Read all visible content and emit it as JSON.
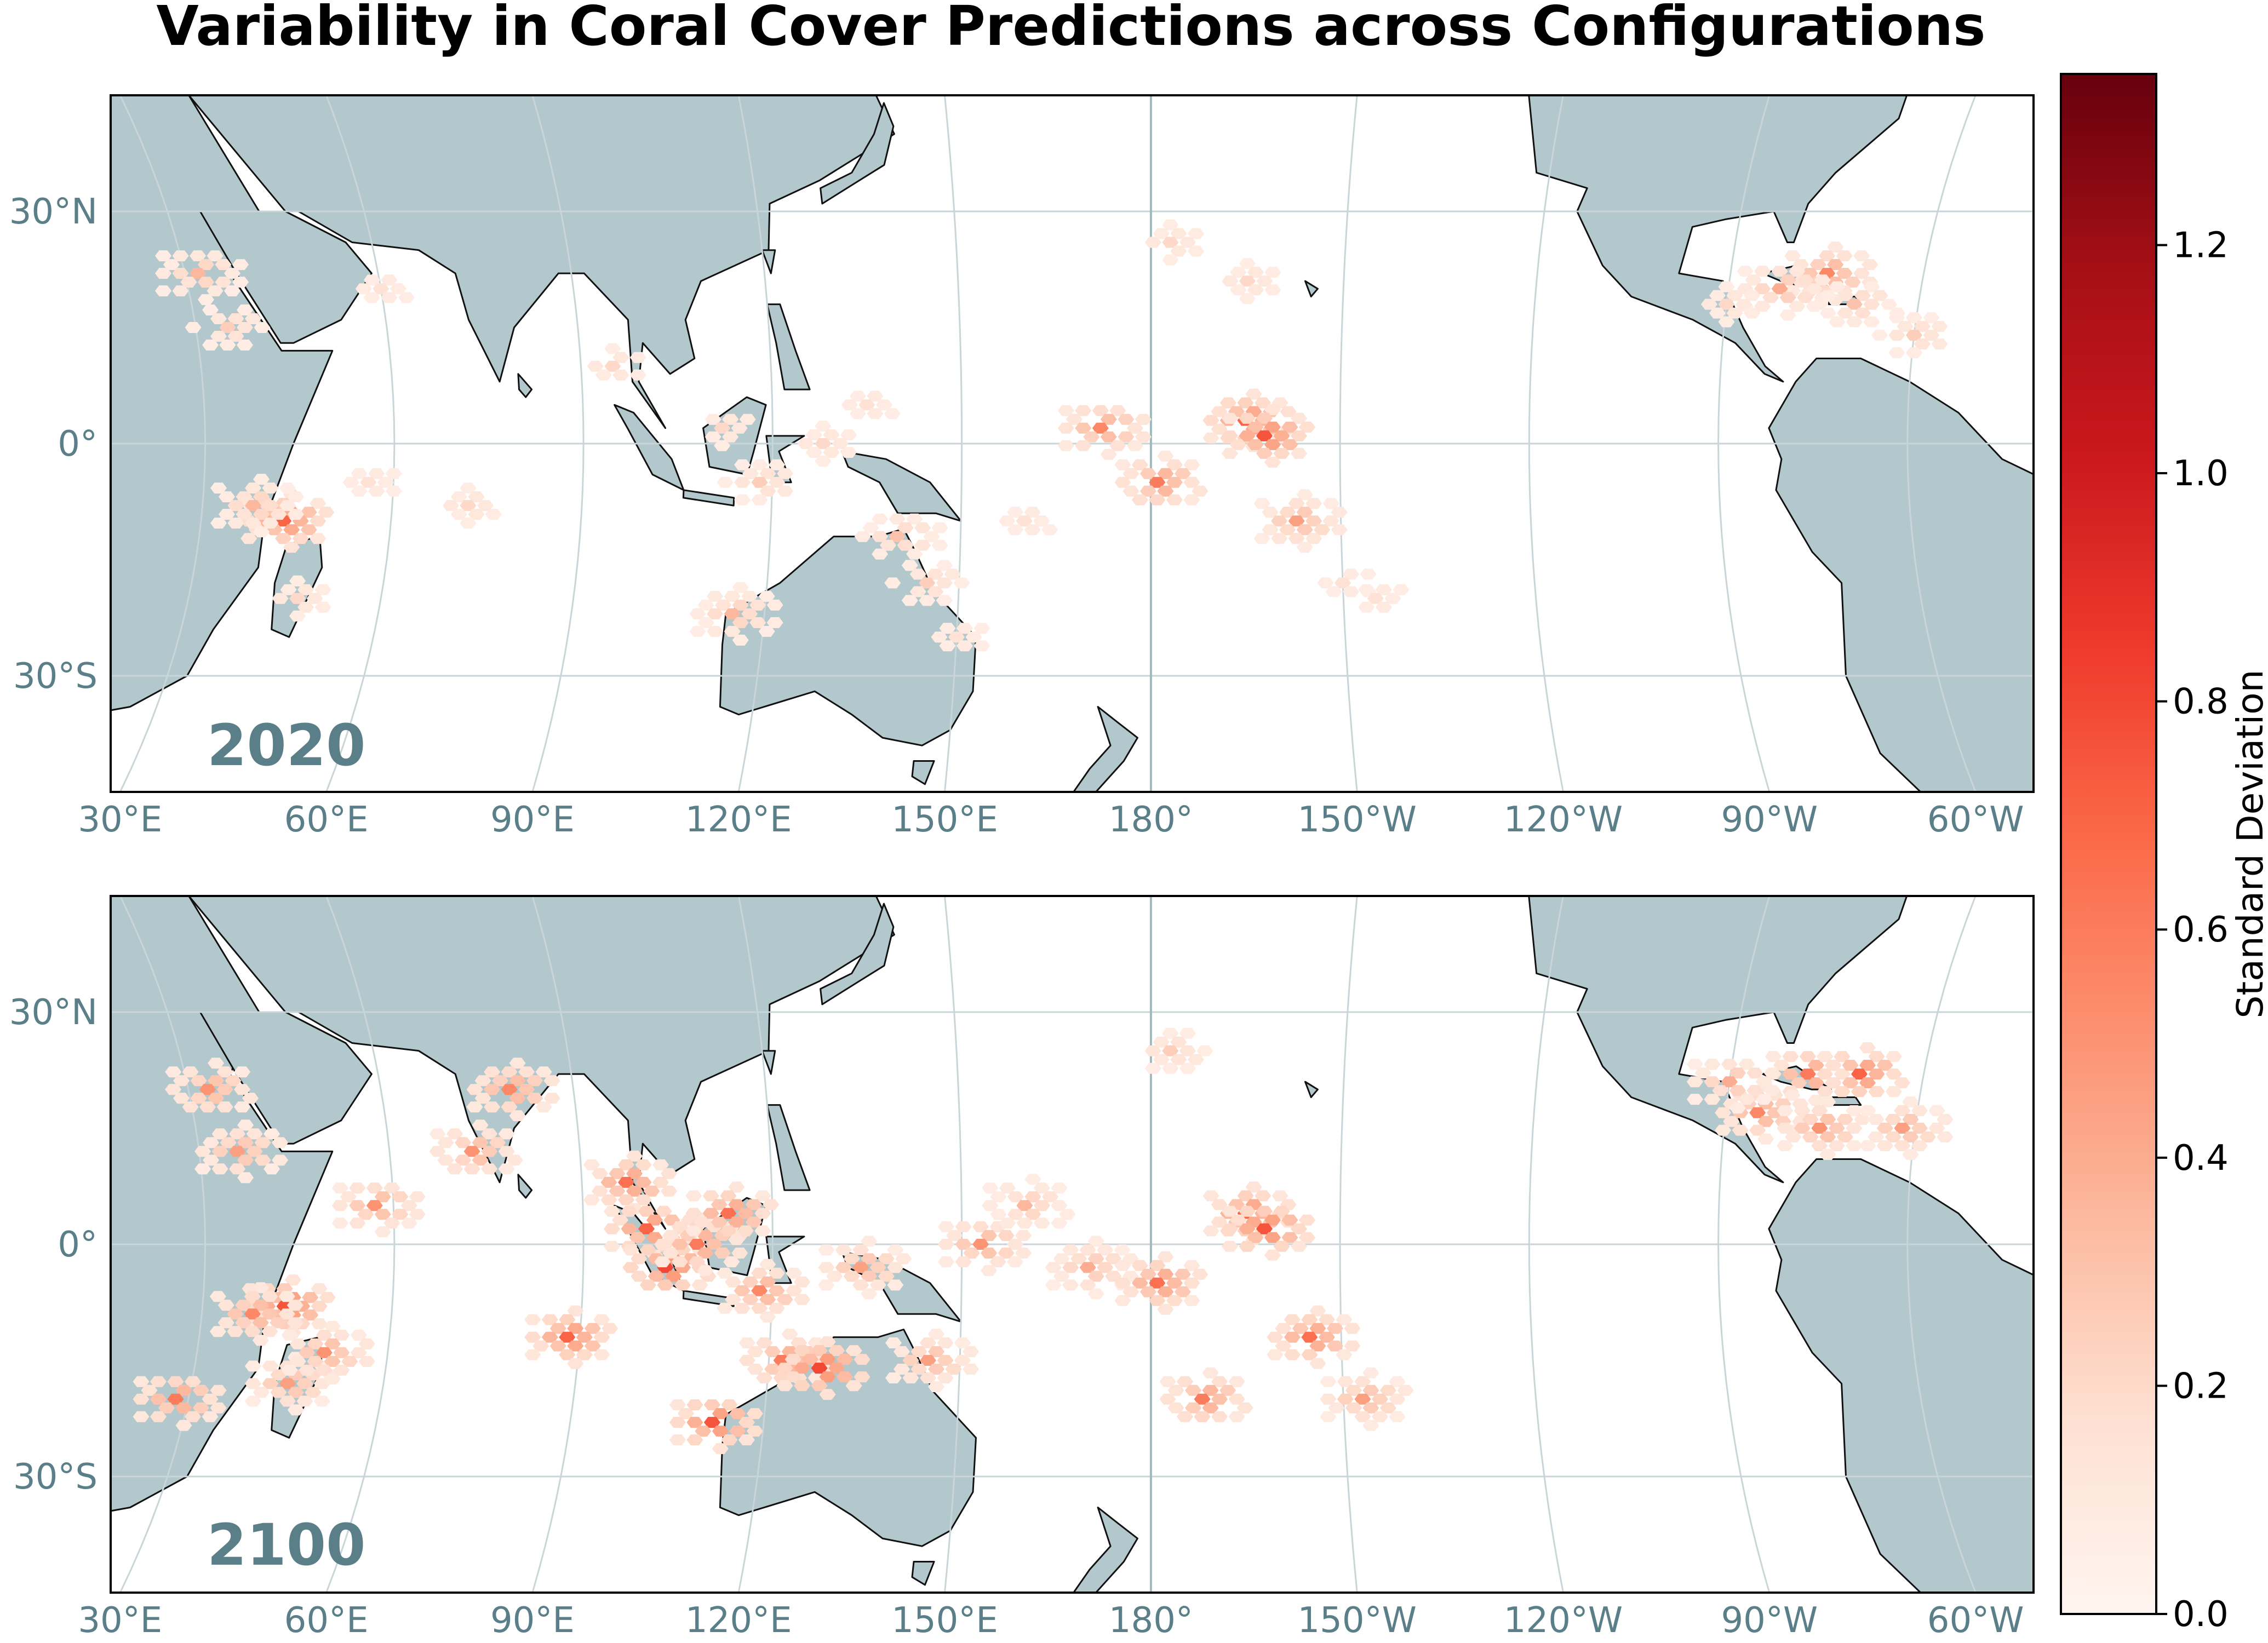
{
  "title": "Variability in Coral Cover Predictions across Configurations",
  "panels": [
    {
      "year_label": "2020",
      "hotspots": [
        {
          "lon": 43,
          "lat": -10,
          "sd": 0.7
        },
        {
          "lon": 38,
          "lat": -8,
          "sd": 0.35
        },
        {
          "lon": 32,
          "lat": 22,
          "sd": 0.35
        },
        {
          "lon": 35,
          "lat": 15,
          "sd": 0.25
        },
        {
          "lon": 47,
          "lat": -20,
          "sd": 0.2
        },
        {
          "lon": 56,
          "lat": -5,
          "sd": 0.15
        },
        {
          "lon": 72,
          "lat": -8,
          "sd": 0.2
        },
        {
          "lon": 95,
          "lat": 10,
          "sd": 0.2
        },
        {
          "lon": 112,
          "lat": 2,
          "sd": 0.2
        },
        {
          "lon": 118,
          "lat": -5,
          "sd": 0.25
        },
        {
          "lon": 128,
          "lat": 0,
          "sd": 0.2
        },
        {
          "lon": 135,
          "lat": 5,
          "sd": 0.15
        },
        {
          "lon": 140,
          "lat": -12,
          "sd": 0.3
        },
        {
          "lon": 145,
          "lat": -18,
          "sd": 0.25
        },
        {
          "lon": 115,
          "lat": -22,
          "sd": 0.35
        },
        {
          "lon": 150,
          "lat": -25,
          "sd": 0.15
        },
        {
          "lon": 160,
          "lat": -10,
          "sd": 0.15
        },
        {
          "lon": 172,
          "lat": 2,
          "sd": 0.55
        },
        {
          "lon": 181,
          "lat": -5,
          "sd": 0.6
        },
        {
          "lon": 195,
          "lat": 3,
          "sd": 0.7
        },
        {
          "lon": 198,
          "lat": 1,
          "sd": 0.75
        },
        {
          "lon": 203,
          "lat": -10,
          "sd": 0.45
        },
        {
          "lon": 210,
          "lat": -18,
          "sd": 0.15
        },
        {
          "lon": 215,
          "lat": -20,
          "sd": 0.15
        },
        {
          "lon": 183,
          "lat": 26,
          "sd": 0.2
        },
        {
          "lon": 195,
          "lat": 21,
          "sd": 0.2
        },
        {
          "lon": 285,
          "lat": 22,
          "sd": 0.55
        },
        {
          "lon": 278,
          "lat": 20,
          "sd": 0.4
        },
        {
          "lon": 290,
          "lat": 18,
          "sd": 0.3
        },
        {
          "lon": 300,
          "lat": 14,
          "sd": 0.25
        },
        {
          "lon": 270,
          "lat": 18,
          "sd": 0.2
        },
        {
          "lon": 60,
          "lat": 20,
          "sd": 0.15
        }
      ]
    },
    {
      "year_label": "2100",
      "hotspots": [
        {
          "lon": 43,
          "lat": -8,
          "sd": 0.75
        },
        {
          "lon": 38,
          "lat": -9,
          "sd": 0.55
        },
        {
          "lon": 28,
          "lat": -20,
          "sd": 0.6
        },
        {
          "lon": 33,
          "lat": 20,
          "sd": 0.5
        },
        {
          "lon": 36,
          "lat": 12,
          "sd": 0.45
        },
        {
          "lon": 45,
          "lat": -18,
          "sd": 0.45
        },
        {
          "lon": 50,
          "lat": -14,
          "sd": 0.5
        },
        {
          "lon": 57,
          "lat": 5,
          "sd": 0.5
        },
        {
          "lon": 73,
          "lat": 12,
          "sd": 0.5
        },
        {
          "lon": 80,
          "lat": 20,
          "sd": 0.55
        },
        {
          "lon": 88,
          "lat": -12,
          "sd": 0.7
        },
        {
          "lon": 97,
          "lat": 8,
          "sd": 0.65
        },
        {
          "lon": 100,
          "lat": 2,
          "sd": 0.7
        },
        {
          "lon": 103,
          "lat": -3,
          "sd": 0.8
        },
        {
          "lon": 108,
          "lat": 0,
          "sd": 0.6
        },
        {
          "lon": 113,
          "lat": 4,
          "sd": 0.65
        },
        {
          "lon": 118,
          "lat": -6,
          "sd": 0.55
        },
        {
          "lon": 112,
          "lat": -23,
          "sd": 0.75
        },
        {
          "lon": 122,
          "lat": -15,
          "sd": 0.6
        },
        {
          "lon": 128,
          "lat": -16,
          "sd": 0.8
        },
        {
          "lon": 134,
          "lat": -3,
          "sd": 0.45
        },
        {
          "lon": 145,
          "lat": -15,
          "sd": 0.45
        },
        {
          "lon": 153,
          "lat": 0,
          "sd": 0.5
        },
        {
          "lon": 160,
          "lat": 5,
          "sd": 0.35
        },
        {
          "lon": 170,
          "lat": -3,
          "sd": 0.4
        },
        {
          "lon": 181,
          "lat": -5,
          "sd": 0.65
        },
        {
          "lon": 195,
          "lat": 4,
          "sd": 0.7
        },
        {
          "lon": 198,
          "lat": 2,
          "sd": 0.75
        },
        {
          "lon": 188,
          "lat": -20,
          "sd": 0.6
        },
        {
          "lon": 205,
          "lat": -12,
          "sd": 0.65
        },
        {
          "lon": 213,
          "lat": -20,
          "sd": 0.45
        },
        {
          "lon": 183,
          "lat": 25,
          "sd": 0.25
        },
        {
          "lon": 282,
          "lat": 22,
          "sd": 0.6
        },
        {
          "lon": 290,
          "lat": 22,
          "sd": 0.7
        },
        {
          "lon": 275,
          "lat": 17,
          "sd": 0.55
        },
        {
          "lon": 285,
          "lat": 15,
          "sd": 0.5
        },
        {
          "lon": 298,
          "lat": 15,
          "sd": 0.45
        },
        {
          "lon": 270,
          "lat": 21,
          "sd": 0.4
        }
      ]
    }
  ],
  "map": {
    "lon_min": 15,
    "lon_max": 320,
    "lat_min": -45,
    "lat_max": 45,
    "central_lon": 180
  },
  "lat_ticks": [
    {
      "value": 30,
      "label": "30°N"
    },
    {
      "value": 0,
      "label": "0°"
    },
    {
      "value": -30,
      "label": "30°S"
    }
  ],
  "lon_ticks": [
    {
      "value": 30,
      "label": "30°E"
    },
    {
      "value": 60,
      "label": "60°E"
    },
    {
      "value": 90,
      "label": "90°E"
    },
    {
      "value": 120,
      "label": "120°E"
    },
    {
      "value": 150,
      "label": "150°E"
    },
    {
      "value": 180,
      "label": "180°"
    },
    {
      "value": 210,
      "label": "150°W"
    },
    {
      "value": 240,
      "label": "120°W"
    },
    {
      "value": 270,
      "label": "90°W"
    },
    {
      "value": 300,
      "label": "60°W"
    }
  ],
  "colorbar": {
    "label": "Standard Deviation",
    "min": 0.0,
    "max": 1.35,
    "ticks": [
      "0.0",
      "0.2",
      "0.4",
      "0.6",
      "0.8",
      "1.0",
      "1.2"
    ],
    "colormap": "Reds",
    "stops": [
      "#fff5f0",
      "#fee0d2",
      "#fcbba1",
      "#fc9272",
      "#fb6a4a",
      "#ef3b2c",
      "#cb181d",
      "#a50f15",
      "#67000d"
    ]
  },
  "colors": {
    "land": "#b3c8cc",
    "coastline": "#111111",
    "label_text": "#5a7f88"
  }
}
